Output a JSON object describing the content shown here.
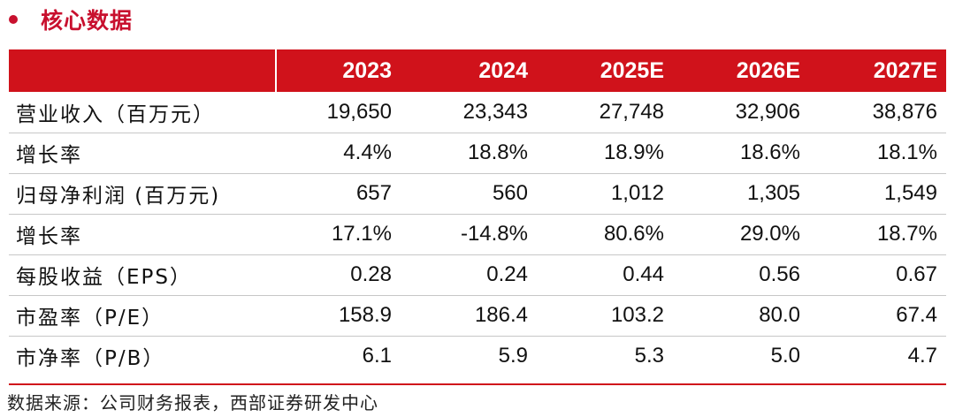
{
  "title": "核心数据",
  "header": [
    "",
    "2023",
    "2024",
    "2025E",
    "2026E",
    "2027E"
  ],
  "rows": [
    {
      "label": "营业收入（百万元）",
      "values": [
        "19,650",
        "23,343",
        "27,748",
        "32,906",
        "38,876"
      ]
    },
    {
      "label": "增长率",
      "values": [
        "4.4%",
        "18.8%",
        "18.9%",
        "18.6%",
        "18.1%"
      ]
    },
    {
      "label": "归母净利润 (百万元)",
      "values": [
        "657",
        "560",
        "1,012",
        "1,305",
        "1,549"
      ]
    },
    {
      "label": "增长率",
      "values": [
        "17.1%",
        "-14.8%",
        "80.6%",
        "29.0%",
        "18.7%"
      ]
    },
    {
      "label": "每股收益（EPS）",
      "values": [
        "0.28",
        "0.24",
        "0.44",
        "0.56",
        "0.67"
      ]
    },
    {
      "label": "市盈率（P/E）",
      "values": [
        "158.9",
        "186.4",
        "103.2",
        "80.0",
        "67.4"
      ]
    },
    {
      "label": "市净率（P/B）",
      "values": [
        "6.1",
        "5.9",
        "5.3",
        "5.0",
        "4.7"
      ]
    }
  ],
  "source": "数据来源：公司财务报表，西部证券研发中心",
  "colors": {
    "accent": "#d0121b",
    "title": "#c8102e"
  }
}
